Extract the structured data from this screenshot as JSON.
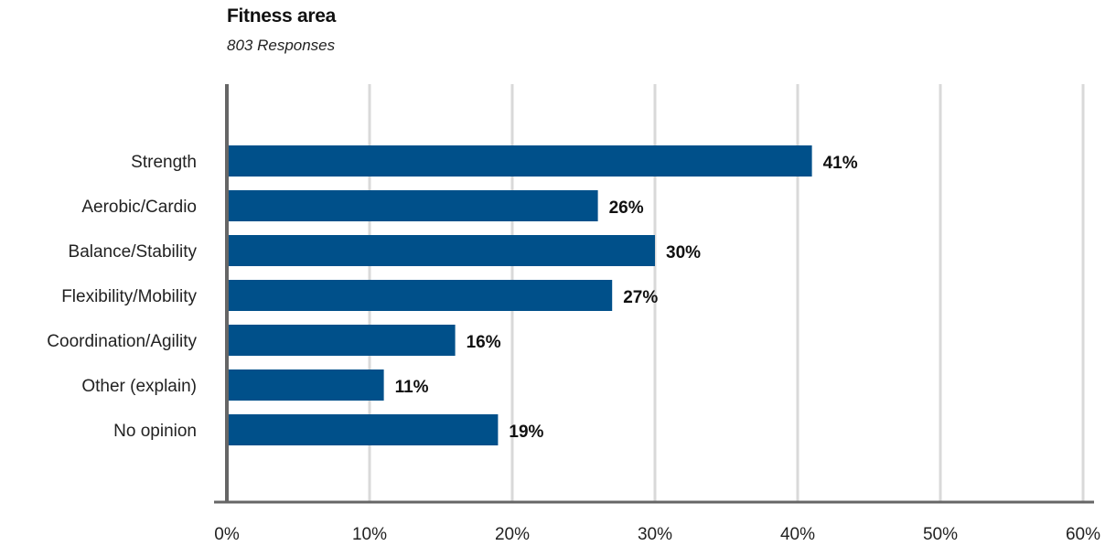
{
  "chart_data": {
    "type": "bar",
    "orientation": "horizontal",
    "title": "Fitness area",
    "subtitle": "803 Responses",
    "categories": [
      "Strength",
      "Aerobic/Cardio",
      "Balance/Stability",
      "Flexibility/Mobility",
      "Coordination/Agility",
      "Other (explain)",
      "No opinion"
    ],
    "values": [
      41,
      26,
      30,
      27,
      16,
      11,
      19
    ],
    "value_labels": [
      "41%",
      "26%",
      "30%",
      "27%",
      "16%",
      "11%",
      "19%"
    ],
    "xlim": [
      0,
      60
    ],
    "x_ticks": [
      0,
      10,
      20,
      30,
      40,
      50,
      60
    ],
    "x_tick_labels": [
      "0%",
      "10%",
      "20%",
      "30%",
      "40%",
      "50%",
      "60%"
    ],
    "xlabel": "",
    "ylabel": "",
    "grid": true,
    "legend": "none",
    "bar_color": "#00508a",
    "grid_color": "#d9d9d9",
    "axis_color": "#666666"
  }
}
